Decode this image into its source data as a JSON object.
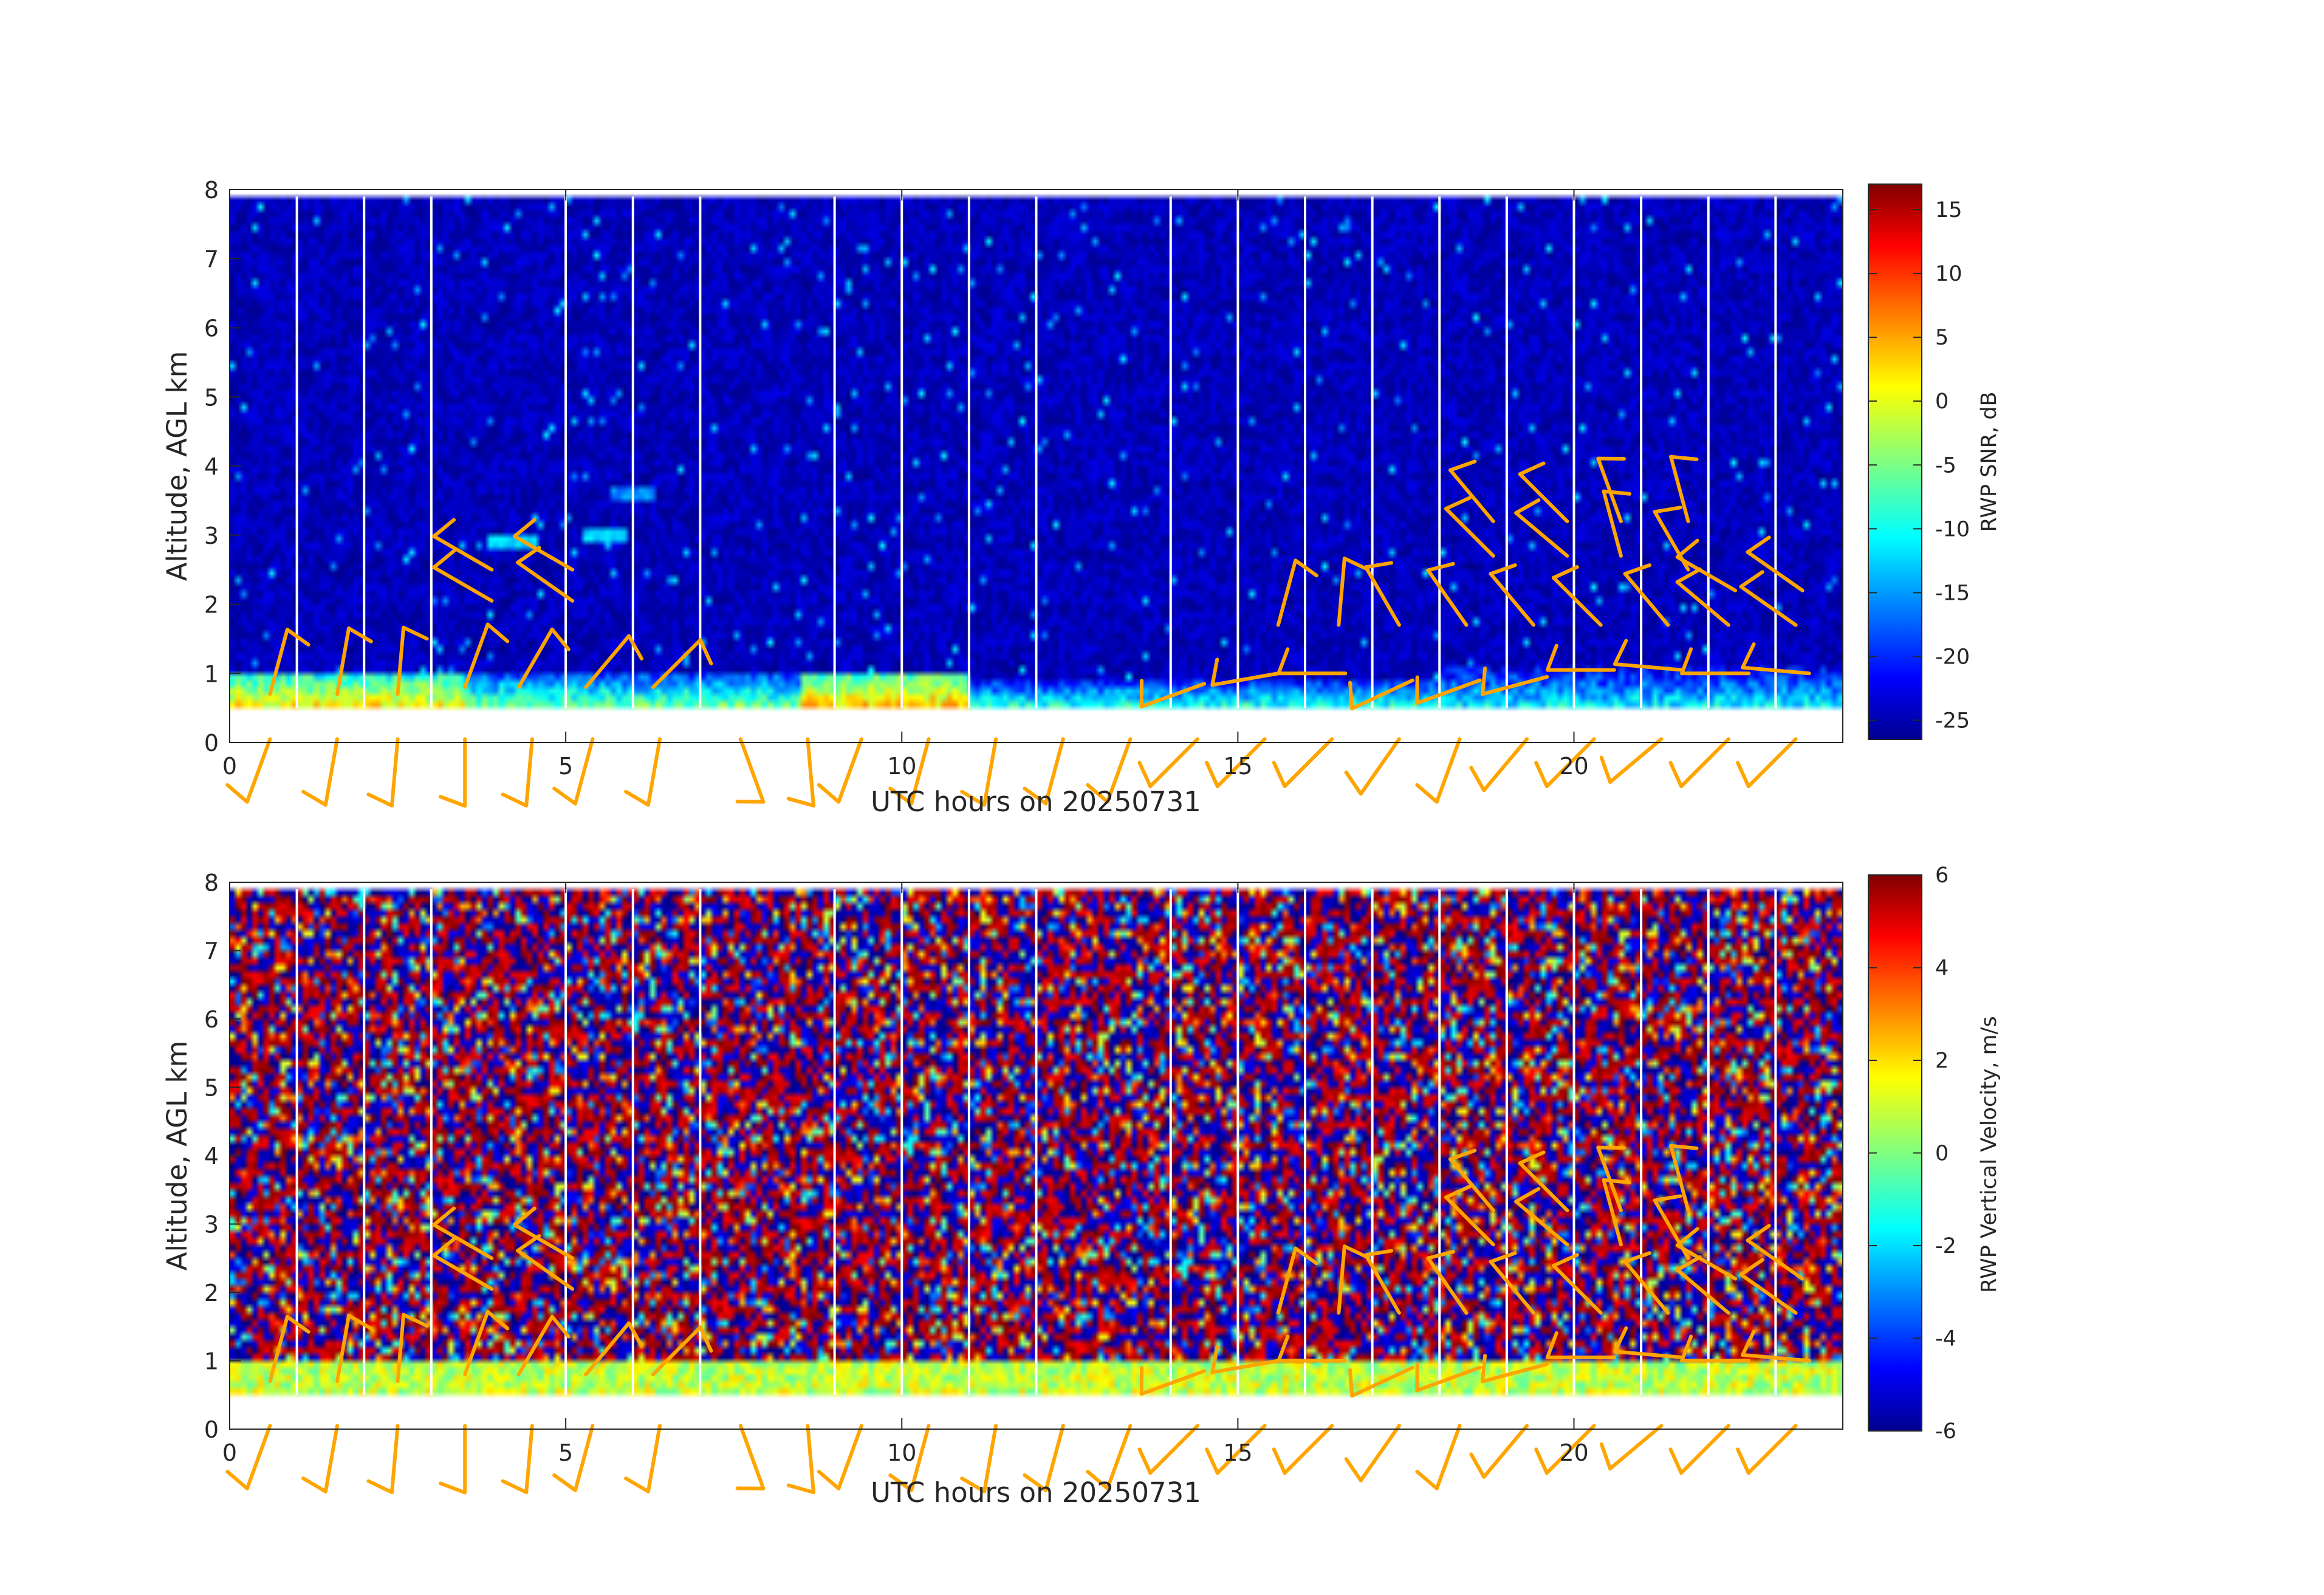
{
  "chart_data": [
    {
      "type": "heatmap",
      "variable": "snr",
      "xlabel": "UTC hours on 20250731",
      "ylabel": "Altitude, AGL km",
      "colorbar_label": "RWP SNR, dB",
      "xlim": [
        0,
        24
      ],
      "ylim": [
        0,
        8
      ],
      "xticks": [
        0,
        5,
        10,
        15,
        20
      ],
      "yticks": [
        0,
        1,
        2,
        3,
        4,
        5,
        6,
        7,
        8
      ],
      "clim": [
        -26.5,
        17
      ],
      "cbticks": [
        -25,
        -20,
        -15,
        -10,
        -5,
        0,
        5,
        10,
        15
      ],
      "colormap": "jet",
      "data_bottom_km": 0.5,
      "data_top_km": 7.9,
      "boundary_layer": [
        {
          "t0": 0,
          "t1": 3.5,
          "top_km": 1.0,
          "value_db": 2
        },
        {
          "t0": 3.5,
          "t1": 8.5,
          "top_km": 0.95,
          "value_db": -5
        },
        {
          "t0": 8.5,
          "t1": 11,
          "top_km": 1.0,
          "value_db": 4
        },
        {
          "t0": 11,
          "t1": 18,
          "top_km": 0.9,
          "value_db": -8
        },
        {
          "t0": 18,
          "t1": 24,
          "top_km": 1.1,
          "value_db": -10
        }
      ],
      "elevated_echo": [
        {
          "t": 4.2,
          "alt_km": 2.9,
          "value_db": -12
        },
        {
          "t": 5.6,
          "alt_km": 3.0,
          "value_db": -12
        },
        {
          "t": 6.0,
          "alt_km": 3.6,
          "value_db": -15
        }
      ],
      "data_gaps_utc": [
        1,
        2,
        3,
        5,
        6,
        7,
        9,
        10,
        11,
        12,
        14,
        15,
        16,
        17,
        18,
        19,
        20,
        21,
        22,
        23
      ]
    },
    {
      "type": "heatmap",
      "variable": "vertical_velocity",
      "xlabel": "UTC hours on 20250731",
      "ylabel": "Altitude, AGL km",
      "colorbar_label": "RWP Vertical Velocity, m/s",
      "xlim": [
        0,
        24
      ],
      "ylim": [
        0,
        8
      ],
      "xticks": [
        0,
        5,
        10,
        15,
        20
      ],
      "yticks": [
        0,
        1,
        2,
        3,
        4,
        5,
        6,
        7,
        8
      ],
      "clim": [
        -6,
        6
      ],
      "cbticks": [
        -6,
        -4,
        -2,
        0,
        2,
        4,
        6
      ],
      "colormap": "jet",
      "data_bottom_km": 0.5,
      "data_top_km": 7.9,
      "boundary_layer_top_km": 1.0,
      "boundary_layer_velocity_ms": 0.8,
      "free_troposphere": "noise, ±6 m/s",
      "data_gaps_utc": [
        1,
        2,
        3,
        5,
        6,
        7,
        9,
        10,
        11,
        12,
        14,
        15,
        16,
        17,
        18,
        19,
        20,
        21,
        22,
        23
      ]
    }
  ],
  "wind_barbs": {
    "color": "#FFA500",
    "near_surface_km": 0.5,
    "surface": [
      {
        "t": 0.6,
        "dir": 200,
        "knots": 10
      },
      {
        "t": 1.6,
        "dir": 190,
        "knots": 10
      },
      {
        "t": 2.5,
        "dir": 185,
        "knots": 10
      },
      {
        "t": 3.5,
        "dir": 180,
        "knots": 10
      },
      {
        "t": 4.5,
        "dir": 185,
        "knots": 10
      },
      {
        "t": 5.4,
        "dir": 195,
        "knots": 10
      },
      {
        "t": 6.4,
        "dir": 190,
        "knots": 10
      },
      {
        "t": 7.6,
        "dir": 160,
        "knots": 10
      },
      {
        "t": 8.6,
        "dir": 175,
        "knots": 10
      },
      {
        "t": 9.4,
        "dir": 200,
        "knots": 10
      },
      {
        "t": 10.4,
        "dir": 195,
        "knots": 10
      },
      {
        "t": 11.4,
        "dir": 190,
        "knots": 10
      },
      {
        "t": 12.4,
        "dir": 195,
        "knots": 10
      },
      {
        "t": 13.4,
        "dir": 200,
        "knots": 10
      },
      {
        "t": 14.4,
        "dir": 225,
        "knots": 10
      },
      {
        "t": 15.4,
        "dir": 225,
        "knots": 10
      },
      {
        "t": 16.4,
        "dir": 225,
        "knots": 10
      },
      {
        "t": 17.4,
        "dir": 215,
        "knots": 10
      },
      {
        "t": 18.3,
        "dir": 200,
        "knots": 10
      },
      {
        "t": 19.3,
        "dir": 220,
        "knots": 10
      },
      {
        "t": 20.3,
        "dir": 225,
        "knots": 10
      },
      {
        "t": 21.3,
        "dir": 230,
        "knots": 10
      },
      {
        "t": 22.3,
        "dir": 225,
        "knots": 10
      },
      {
        "t": 23.3,
        "dir": 225,
        "knots": 10
      }
    ],
    "aloft": [
      {
        "t": 0.6,
        "alt_km": 0.7,
        "dir": 15,
        "knots": 10
      },
      {
        "t": 1.6,
        "alt_km": 0.7,
        "dir": 10,
        "knots": 10
      },
      {
        "t": 2.5,
        "alt_km": 0.7,
        "dir": 5,
        "knots": 10
      },
      {
        "t": 3.5,
        "alt_km": 0.8,
        "dir": 20,
        "knots": 10
      },
      {
        "t": 4.3,
        "alt_km": 0.8,
        "dir": 30,
        "knots": 10
      },
      {
        "t": 5.3,
        "alt_km": 0.8,
        "dir": 40,
        "knots": 10
      },
      {
        "t": 6.3,
        "alt_km": 0.8,
        "dir": 45,
        "knots": 10
      },
      {
        "t": 3.9,
        "alt_km": 2.5,
        "dir": 300,
        "knots": 10
      },
      {
        "t": 3.9,
        "alt_km": 2.05,
        "dir": 300,
        "knots": 10
      },
      {
        "t": 5.1,
        "alt_km": 2.5,
        "dir": 300,
        "knots": 10
      },
      {
        "t": 5.1,
        "alt_km": 2.05,
        "dir": 305,
        "knots": 10
      },
      {
        "t": 15.6,
        "alt_km": 1.7,
        "dir": 15,
        "knots": 10
      },
      {
        "t": 16.5,
        "alt_km": 1.7,
        "dir": 5,
        "knots": 10
      },
      {
        "t": 17.4,
        "alt_km": 1.7,
        "dir": 330,
        "knots": 10
      },
      {
        "t": 18.4,
        "alt_km": 1.7,
        "dir": 325,
        "knots": 10
      },
      {
        "t": 19.4,
        "alt_km": 1.7,
        "dir": 320,
        "knots": 10
      },
      {
        "t": 18.8,
        "alt_km": 3.2,
        "dir": 320,
        "knots": 10
      },
      {
        "t": 18.8,
        "alt_km": 2.7,
        "dir": 315,
        "knots": 10
      },
      {
        "t": 19.9,
        "alt_km": 3.2,
        "dir": 315,
        "knots": 10
      },
      {
        "t": 19.9,
        "alt_km": 2.7,
        "dir": 310,
        "knots": 10
      },
      {
        "t": 20.7,
        "alt_km": 3.2,
        "dir": 340,
        "knots": 10
      },
      {
        "t": 20.7,
        "alt_km": 2.7,
        "dir": 345,
        "knots": 10
      },
      {
        "t": 21.7,
        "alt_km": 3.2,
        "dir": 345,
        "knots": 10
      },
      {
        "t": 21.7,
        "alt_km": 2.5,
        "dir": 330,
        "knots": 10
      },
      {
        "t": 20.4,
        "alt_km": 1.7,
        "dir": 315,
        "knots": 10
      },
      {
        "t": 21.4,
        "alt_km": 1.7,
        "dir": 320,
        "knots": 10
      },
      {
        "t": 22.3,
        "alt_km": 1.7,
        "dir": 310,
        "knots": 10
      },
      {
        "t": 23.3,
        "alt_km": 1.7,
        "dir": 305,
        "knots": 10
      },
      {
        "t": 22.4,
        "alt_km": 2.2,
        "dir": 300,
        "knots": 10
      },
      {
        "t": 23.4,
        "alt_km": 2.2,
        "dir": 305,
        "knots": 10
      },
      {
        "t": 14.5,
        "alt_km": 0.85,
        "dir": 250,
        "knots": 10
      },
      {
        "t": 15.6,
        "alt_km": 1.0,
        "dir": 260,
        "knots": 10
      },
      {
        "t": 16.6,
        "alt_km": 1.0,
        "dir": 270,
        "knots": 10
      },
      {
        "t": 17.6,
        "alt_km": 0.9,
        "dir": 245,
        "knots": 10
      },
      {
        "t": 18.6,
        "alt_km": 0.9,
        "dir": 250,
        "knots": 10
      },
      {
        "t": 19.6,
        "alt_km": 0.95,
        "dir": 255,
        "knots": 10
      },
      {
        "t": 20.6,
        "alt_km": 1.05,
        "dir": 270,
        "knots": 10
      },
      {
        "t": 21.6,
        "alt_km": 1.05,
        "dir": 275,
        "knots": 10
      },
      {
        "t": 22.6,
        "alt_km": 1.0,
        "dir": 270,
        "knots": 10
      },
      {
        "t": 23.5,
        "alt_km": 1.0,
        "dir": 275,
        "knots": 10
      }
    ]
  }
}
